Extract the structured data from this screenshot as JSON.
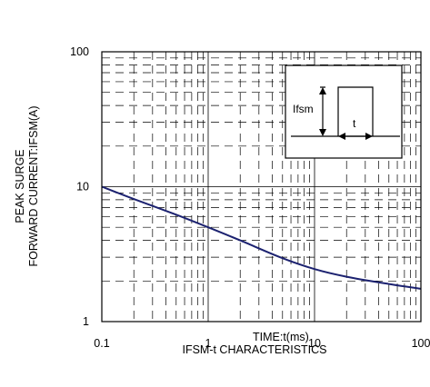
{
  "chart_data": {
    "type": "line",
    "title": "",
    "caption": "IFSM-t CHARACTERISTICS",
    "xlabel": "TIME:t(ms)",
    "ylabel_line1": "PEAK SURGE",
    "ylabel_line2": "FORWARD CURRENT:IFSM(A)",
    "x_scale": "log",
    "y_scale": "log",
    "xlim": [
      0.1,
      100
    ],
    "ylim": [
      1,
      100
    ],
    "x_ticks": [
      "0.1",
      "1",
      "10",
      "100"
    ],
    "y_ticks": [
      "1",
      "10",
      "100"
    ],
    "grid": true,
    "series": [
      {
        "x": [
          0.1,
          0.2,
          0.5,
          1,
          2,
          5,
          10,
          20,
          50,
          100
        ],
        "y": [
          10,
          8.1,
          6.2,
          5.0,
          4.0,
          2.95,
          2.45,
          2.15,
          1.9,
          1.75
        ]
      }
    ],
    "inset": {
      "label_ifsm": "Ifsm",
      "label_t": "t"
    }
  }
}
